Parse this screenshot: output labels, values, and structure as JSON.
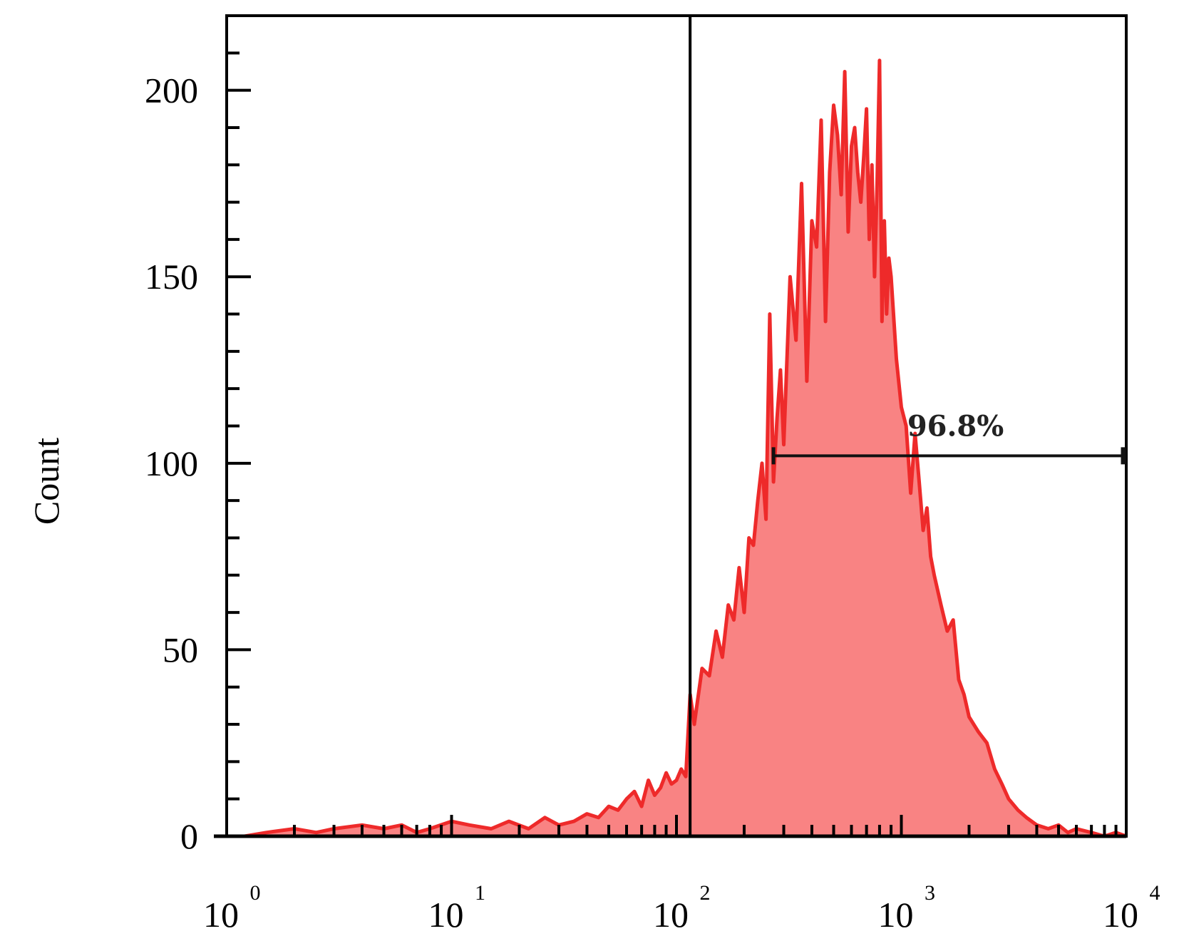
{
  "chart_data": {
    "type": "area",
    "title": "",
    "xlabel": "",
    "ylabel": "Count",
    "x_scale": "log",
    "xlim": [
      1,
      10000
    ],
    "ylim": [
      0,
      220
    ],
    "x_ticks": [
      {
        "value": 1,
        "base": "10",
        "exp": "0"
      },
      {
        "value": 10,
        "base": "10",
        "exp": "1"
      },
      {
        "value": 100,
        "base": "10",
        "exp": "2"
      },
      {
        "value": 1000,
        "base": "10",
        "exp": "3"
      },
      {
        "value": 10000,
        "base": "10",
        "exp": "4"
      }
    ],
    "y_ticks": [
      "0",
      "50",
      "100",
      "150",
      "200"
    ],
    "grid": false,
    "fill_color": "#f87878",
    "line_color": "#ee2a2a",
    "gate_line_x": 115,
    "marker": {
      "label": "96.8%",
      "x_start": 270,
      "x_end": 10000,
      "y": 102
    },
    "series": [
      {
        "x": [
          1.2,
          1.5,
          2,
          2.5,
          3,
          4,
          5,
          6,
          7,
          8,
          10,
          12,
          15,
          18,
          22,
          26,
          30,
          35,
          40,
          45,
          50,
          55,
          60,
          65,
          70,
          75,
          80,
          85,
          90,
          95,
          100,
          105,
          110,
          115,
          120,
          130,
          140,
          150,
          160,
          170,
          180,
          190,
          200,
          210,
          220,
          230,
          240,
          250,
          260,
          270,
          280,
          290,
          300,
          320,
          340,
          360,
          380,
          400,
          420,
          440,
          460,
          480,
          500,
          520,
          540,
          560,
          580,
          600,
          620,
          640,
          660,
          680,
          700,
          720,
          740,
          760,
          780,
          800,
          820,
          840,
          860,
          880,
          900,
          950,
          1000,
          1050,
          1100,
          1150,
          1200,
          1250,
          1300,
          1350,
          1400,
          1500,
          1600,
          1700,
          1800,
          1900,
          2000,
          2200,
          2400,
          2600,
          2800,
          3000,
          3300,
          3600,
          4000,
          4500,
          5000,
          5500,
          6000,
          7000,
          8000,
          9000,
          10000
        ],
        "values": [
          0,
          1,
          2,
          1,
          2,
          3,
          2,
          3,
          1,
          2,
          4,
          3,
          2,
          4,
          2,
          5,
          3,
          4,
          6,
          5,
          8,
          7,
          10,
          12,
          8,
          15,
          11,
          13,
          17,
          14,
          15,
          18,
          16,
          38,
          30,
          45,
          43,
          55,
          48,
          62,
          58,
          72,
          60,
          80,
          78,
          90,
          100,
          85,
          140,
          95,
          112,
          125,
          105,
          150,
          133,
          175,
          122,
          165,
          158,
          192,
          138,
          178,
          196,
          188,
          172,
          205,
          162,
          185,
          190,
          178,
          170,
          182,
          195,
          160,
          180,
          150,
          175,
          208,
          138,
          165,
          140,
          155,
          150,
          128,
          115,
          110,
          92,
          108,
          95,
          82,
          88,
          75,
          70,
          62,
          55,
          58,
          42,
          38,
          32,
          28,
          25,
          18,
          14,
          10,
          7,
          5,
          3,
          2,
          3,
          1,
          2,
          1,
          0,
          1,
          0
        ]
      }
    ]
  }
}
